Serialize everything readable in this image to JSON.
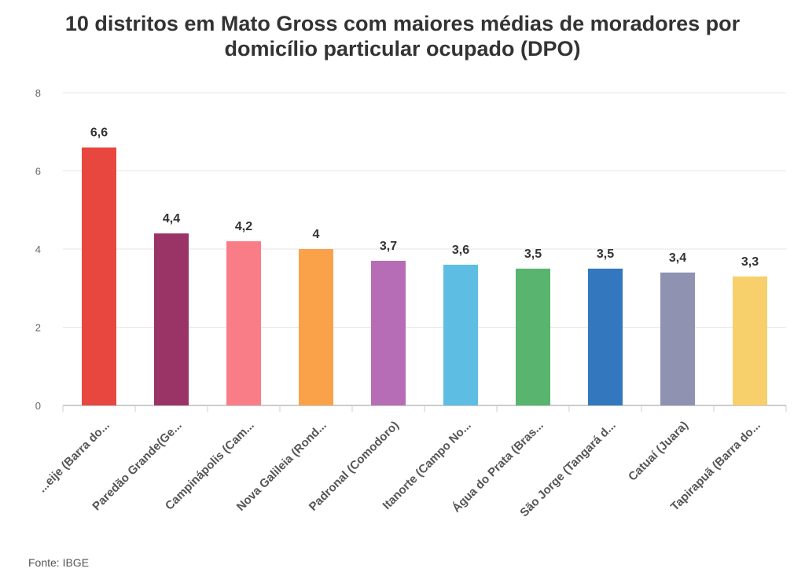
{
  "title_line1": "10 distritos em Mato Gross com maiores médias de moradores por",
  "title_line2": "domicílio particular ocupado (DPO)",
  "source": "Fonte: IBGE",
  "chart_data": {
    "type": "bar",
    "title": "10 distritos em Mato Gross com maiores médias de moradores por domicílio particular ocupado (DPO)",
    "xlabel": "",
    "ylabel": "",
    "ylim": [
      0,
      8
    ],
    "yticks": [
      0,
      2,
      4,
      6,
      8
    ],
    "grid": true,
    "categories": [
      "...eije (Barra do...",
      "Paredão Grande(Ge...",
      "Campinápolis (Cam...",
      "Nova Galileia (Rond...",
      "Padronal (Comodoro)",
      "Itanorte (Campo No...",
      "Água do Prata (Bras...",
      "São Jorge (Tangará d...",
      "Catuaí (Juara)",
      "Tapirapuã (Barra do..."
    ],
    "values": [
      6.6,
      4.4,
      4.2,
      4,
      3.7,
      3.6,
      3.5,
      3.5,
      3.4,
      3.3
    ],
    "value_labels": [
      "6,6",
      "4,4",
      "4,2",
      "4",
      "3,7",
      "3,6",
      "3,5",
      "3,5",
      "3,4",
      "3,3"
    ],
    "colors": [
      "#e8473f",
      "#9a3366",
      "#f97d86",
      "#f9a24a",
      "#b66db6",
      "#5ebde2",
      "#58b46e",
      "#3378be",
      "#9092b2",
      "#f7cf6b"
    ]
  }
}
